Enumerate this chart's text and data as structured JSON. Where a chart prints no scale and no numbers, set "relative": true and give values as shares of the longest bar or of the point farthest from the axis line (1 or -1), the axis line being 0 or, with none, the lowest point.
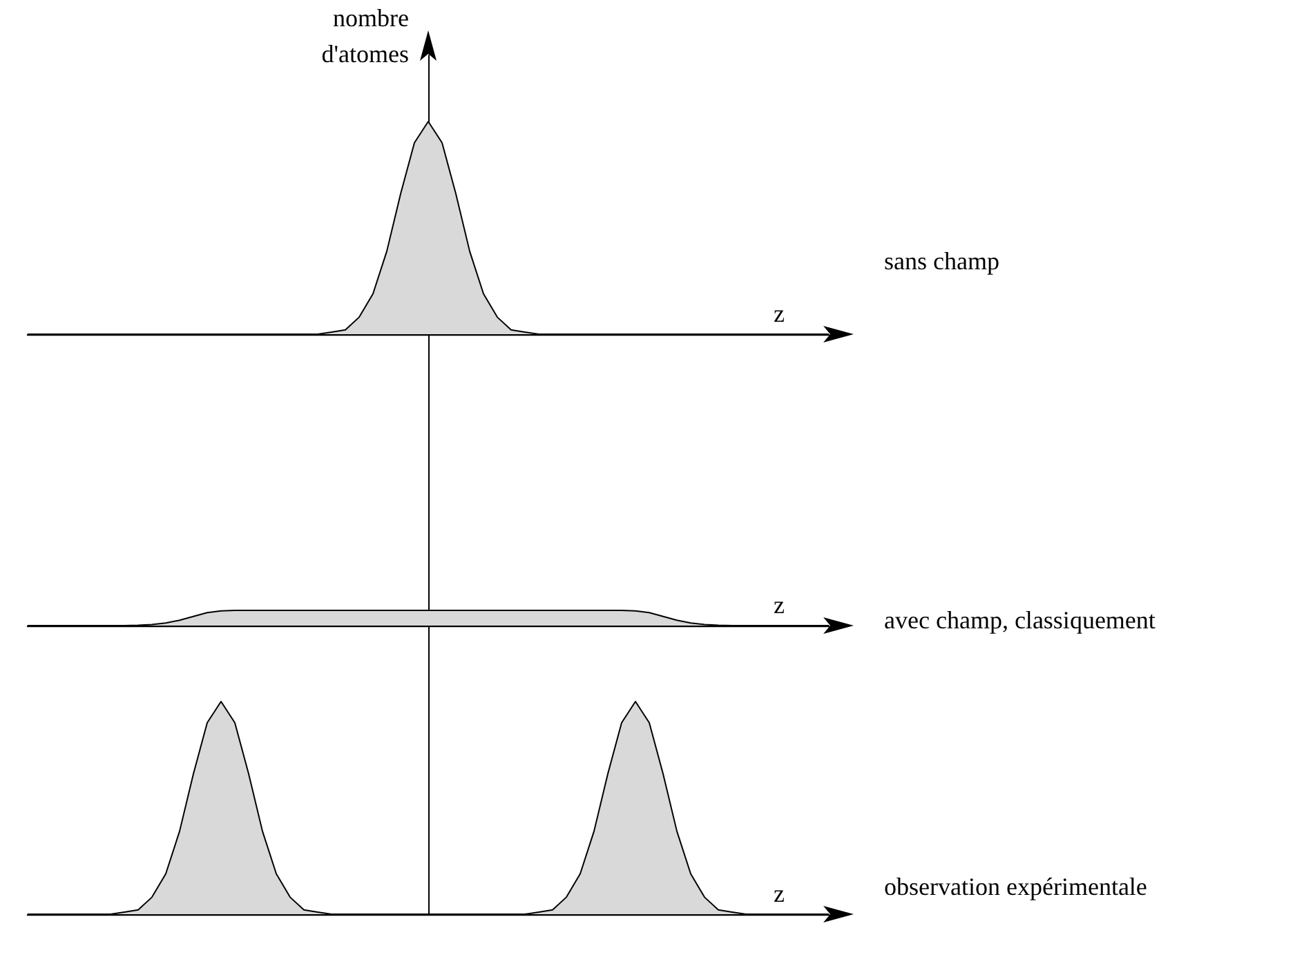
{
  "chart_data": [
    {
      "type": "area",
      "relative": true,
      "tick_labels": false,
      "ylabel": "nombre d'atomes",
      "xlabel": "z",
      "annotations": [
        "sans champ"
      ],
      "categories": [
        null,
        null,
        null,
        null,
        null,
        null,
        null,
        null,
        null,
        null,
        null,
        null,
        null,
        null,
        null,
        null,
        null,
        null,
        null,
        null,
        null,
        null,
        null,
        null,
        null,
        null,
        null,
        null,
        null,
        null,
        null,
        null,
        null,
        null,
        null,
        null,
        null,
        null,
        null,
        null,
        null,
        null,
        null,
        null,
        null,
        null,
        null,
        null,
        null,
        null,
        null,
        null,
        null,
        null,
        null,
        null,
        null,
        null,
        null
      ],
      "series": [
        {
          "color": "#d9d9d9",
          "values": [
            0,
            0,
            0,
            0,
            0,
            0,
            0,
            0,
            0,
            0,
            0,
            0,
            0,
            0,
            0,
            0,
            0,
            0,
            0,
            0,
            0,
            0,
            0.01,
            0.02,
            0.08,
            0.19,
            0.39,
            0.66,
            0.9,
            1,
            0.9,
            0.66,
            0.39,
            0.19,
            0.08,
            0.02,
            0.01,
            0,
            0,
            0,
            0,
            0,
            0,
            0,
            0,
            0,
            0,
            0,
            0,
            0,
            0,
            0,
            0,
            0,
            0,
            0,
            0,
            0,
            0
          ]
        }
      ]
    },
    {
      "type": "area",
      "relative": true,
      "tick_labels": false,
      "xlabel": "z",
      "annotations": [
        "avec champ, classiquement"
      ],
      "categories": [
        null,
        null,
        null,
        null,
        null,
        null,
        null,
        null,
        null,
        null,
        null,
        null,
        null,
        null,
        null,
        null,
        null,
        null,
        null,
        null,
        null,
        null,
        null,
        null,
        null,
        null,
        null,
        null,
        null,
        null,
        null,
        null,
        null,
        null,
        null,
        null,
        null,
        null,
        null,
        null,
        null,
        null,
        null,
        null,
        null,
        null,
        null,
        null,
        null,
        null,
        null,
        null,
        null,
        null,
        null,
        null,
        null,
        null,
        null
      ],
      "series": [
        {
          "color": "#d9d9d9",
          "values": [
            0,
            0,
            0,
            0,
            0,
            0,
            0,
            0,
            0.02,
            0.07,
            0.17,
            0.35,
            0.6,
            0.85,
            0.97,
            1,
            1,
            1,
            1,
            1,
            1,
            1,
            1,
            1,
            1,
            1,
            1,
            1,
            1,
            1,
            1,
            1,
            1,
            1,
            1,
            1,
            1,
            1,
            1,
            1,
            1,
            1,
            1,
            1,
            0.97,
            0.85,
            0.6,
            0.35,
            0.17,
            0.07,
            0.02,
            0,
            0,
            0,
            0,
            0,
            0,
            0,
            0
          ]
        }
      ]
    },
    {
      "type": "area",
      "relative": true,
      "tick_labels": false,
      "xlabel": "z",
      "annotations": [
        "observation expérimentale"
      ],
      "categories": [
        null,
        null,
        null,
        null,
        null,
        null,
        null,
        null,
        null,
        null,
        null,
        null,
        null,
        null,
        null,
        null,
        null,
        null,
        null,
        null,
        null,
        null,
        null,
        null,
        null,
        null,
        null,
        null,
        null,
        null,
        null,
        null,
        null,
        null,
        null,
        null,
        null,
        null,
        null,
        null,
        null,
        null,
        null,
        null,
        null,
        null,
        null,
        null,
        null,
        null,
        null,
        null,
        null,
        null,
        null,
        null,
        null,
        null,
        null
      ],
      "series": [
        {
          "color": "#d9d9d9",
          "values": [
            0,
            0,
            0,
            0,
            0,
            0,
            0,
            0.01,
            0.02,
            0.08,
            0.19,
            0.39,
            0.66,
            0.9,
            1,
            0.9,
            0.66,
            0.39,
            0.19,
            0.08,
            0.02,
            0.01,
            0,
            0,
            0,
            0,
            0,
            0,
            0,
            0,
            0,
            0,
            0,
            0,
            0,
            0,
            0,
            0.01,
            0.02,
            0.08,
            0.19,
            0.39,
            0.66,
            0.9,
            1,
            0.9,
            0.66,
            0.39,
            0.19,
            0.08,
            0.02,
            0.01,
            0,
            0,
            0,
            0,
            0,
            0,
            0
          ]
        }
      ]
    }
  ]
}
